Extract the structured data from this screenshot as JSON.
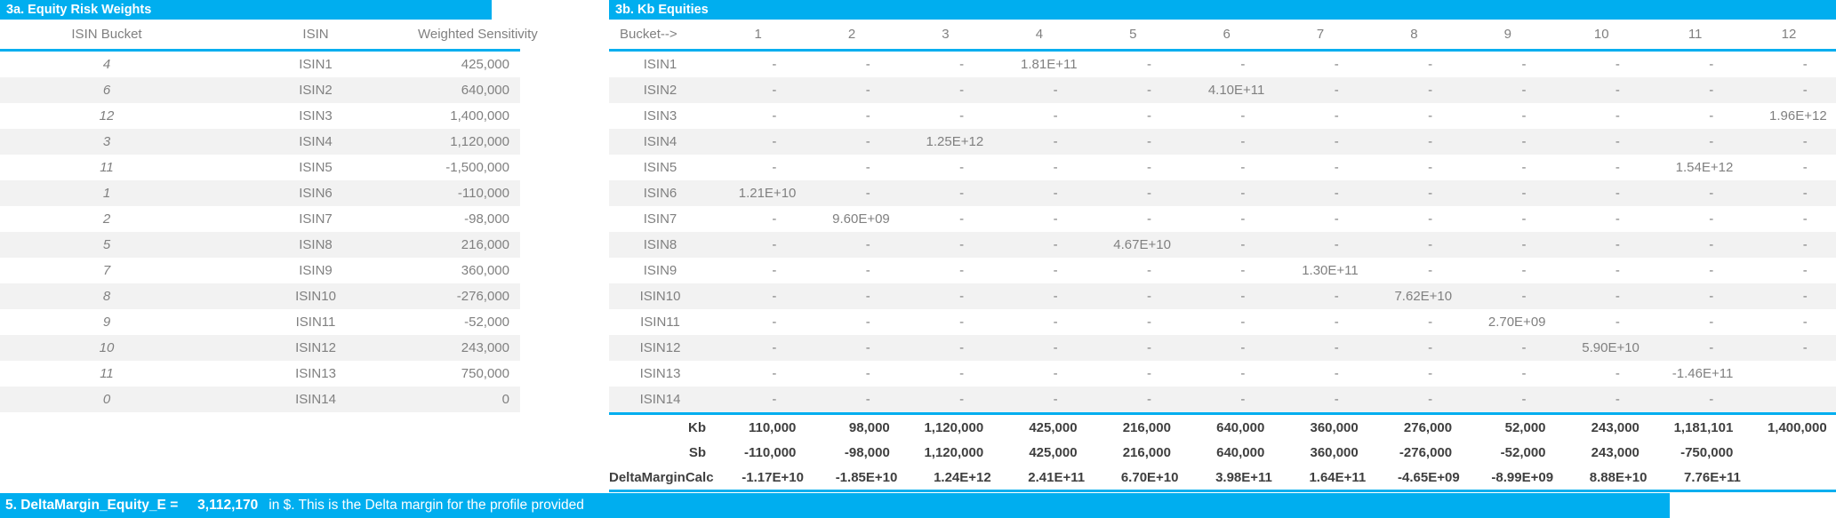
{
  "colors": {
    "accent": "#00AEEF",
    "stripe": "#F2F2F2",
    "cell_text": "#808080",
    "summary_text": "#3F3F3F",
    "band_text": "#FFFFFF"
  },
  "left_table": {
    "title": "3a. Equity Risk Weights",
    "columns": [
      "ISIN Bucket",
      "ISIN",
      "Weighted Sensitivity"
    ],
    "rows": [
      {
        "bucket": "4",
        "isin": "ISIN1",
        "ws": "425,000"
      },
      {
        "bucket": "6",
        "isin": "ISIN2",
        "ws": "640,000"
      },
      {
        "bucket": "12",
        "isin": "ISIN3",
        "ws": "1,400,000"
      },
      {
        "bucket": "3",
        "isin": "ISIN4",
        "ws": "1,120,000"
      },
      {
        "bucket": "11",
        "isin": "ISIN5",
        "ws": "-1,500,000"
      },
      {
        "bucket": "1",
        "isin": "ISIN6",
        "ws": "-110,000"
      },
      {
        "bucket": "2",
        "isin": "ISIN7",
        "ws": "-98,000"
      },
      {
        "bucket": "5",
        "isin": "ISIN8",
        "ws": "216,000"
      },
      {
        "bucket": "7",
        "isin": "ISIN9",
        "ws": "360,000"
      },
      {
        "bucket": "8",
        "isin": "ISIN10",
        "ws": "-276,000"
      },
      {
        "bucket": "9",
        "isin": "ISIN11",
        "ws": "-52,000"
      },
      {
        "bucket": "10",
        "isin": "ISIN12",
        "ws": "243,000"
      },
      {
        "bucket": "11",
        "isin": "ISIN13",
        "ws": "750,000"
      },
      {
        "bucket": "0",
        "isin": "ISIN14",
        "ws": "0"
      }
    ]
  },
  "right_table": {
    "title": "3b. Kb Equities",
    "corner_label": "Bucket-->",
    "bucket_headers": [
      "1",
      "2",
      "3",
      "4",
      "5",
      "6",
      "7",
      "8",
      "9",
      "10",
      "11",
      "12"
    ],
    "rows": [
      {
        "label": "ISIN1",
        "cells": [
          "-",
          "-",
          "-",
          "1.81E+11",
          "-",
          "-",
          "-",
          "-",
          "-",
          "-",
          "-",
          "-"
        ]
      },
      {
        "label": "ISIN2",
        "cells": [
          "-",
          "-",
          "-",
          "-",
          "-",
          "4.10E+11",
          "-",
          "-",
          "-",
          "-",
          "-",
          "-"
        ]
      },
      {
        "label": "ISIN3",
        "cells": [
          "-",
          "-",
          "-",
          "-",
          "-",
          "-",
          "-",
          "-",
          "-",
          "-",
          "-",
          "1.96E+12"
        ]
      },
      {
        "label": "ISIN4",
        "cells": [
          "-",
          "-",
          "1.25E+12",
          "-",
          "-",
          "-",
          "-",
          "-",
          "-",
          "-",
          "-",
          "-"
        ]
      },
      {
        "label": "ISIN5",
        "cells": [
          "-",
          "-",
          "-",
          "-",
          "-",
          "-",
          "-",
          "-",
          "-",
          "-",
          "1.54E+12",
          "-"
        ]
      },
      {
        "label": "ISIN6",
        "cells": [
          "1.21E+10",
          "-",
          "-",
          "-",
          "-",
          "-",
          "-",
          "-",
          "-",
          "-",
          "-",
          "-"
        ]
      },
      {
        "label": "ISIN7",
        "cells": [
          "-",
          "9.60E+09",
          "-",
          "-",
          "-",
          "-",
          "-",
          "-",
          "-",
          "-",
          "-",
          "-"
        ]
      },
      {
        "label": "ISIN8",
        "cells": [
          "-",
          "-",
          "-",
          "-",
          "4.67E+10",
          "-",
          "-",
          "-",
          "-",
          "-",
          "-",
          "-"
        ]
      },
      {
        "label": "ISIN9",
        "cells": [
          "-",
          "-",
          "-",
          "-",
          "-",
          "-",
          "1.30E+11",
          "-",
          "-",
          "-",
          "-",
          "-"
        ]
      },
      {
        "label": "ISIN10",
        "cells": [
          "-",
          "-",
          "-",
          "-",
          "-",
          "-",
          "-",
          "7.62E+10",
          "-",
          "-",
          "-",
          "-"
        ]
      },
      {
        "label": "ISIN11",
        "cells": [
          "-",
          "-",
          "-",
          "-",
          "-",
          "-",
          "-",
          "-",
          "2.70E+09",
          "-",
          "-",
          "-"
        ]
      },
      {
        "label": "ISIN12",
        "cells": [
          "-",
          "-",
          "-",
          "-",
          "-",
          "-",
          "-",
          "-",
          "-",
          "5.90E+10",
          "-",
          "-"
        ]
      },
      {
        "label": "ISIN13",
        "cells": [
          "-",
          "-",
          "-",
          "-",
          "-",
          "-",
          "-",
          "-",
          "-",
          "-",
          "-1.46E+11",
          ""
        ]
      },
      {
        "label": "ISIN14",
        "cells": [
          "-",
          "-",
          "-",
          "-",
          "-",
          "-",
          "-",
          "-",
          "-",
          "-",
          "-",
          ""
        ]
      }
    ],
    "summary_rows": [
      {
        "label": "Kb",
        "cells": [
          "110,000",
          "98,000",
          "1,120,000",
          "425,000",
          "216,000",
          "640,000",
          "360,000",
          "276,000",
          "52,000",
          "243,000",
          "1,181,101",
          "1,400,000"
        ]
      },
      {
        "label": "Sb",
        "cells": [
          "-110,000",
          "-98,000",
          "1,120,000",
          "425,000",
          "216,000",
          "640,000",
          "360,000",
          "-276,000",
          "-52,000",
          "243,000",
          "-750,000",
          ""
        ]
      },
      {
        "label": "DeltaMarginCalc",
        "cells": [
          "-1.17E+10",
          "-1.85E+10",
          "1.24E+12",
          "2.41E+11",
          "6.70E+10",
          "3.98E+11",
          "1.64E+11",
          "-4.65E+09",
          "-8.99E+09",
          "8.88E+10",
          "7.76E+11",
          ""
        ]
      }
    ]
  },
  "footer": {
    "label": "5. DeltaMargin_Equity_E =",
    "value": "3,112,170",
    "description": "in $. This is the Delta margin for the profile provided"
  }
}
